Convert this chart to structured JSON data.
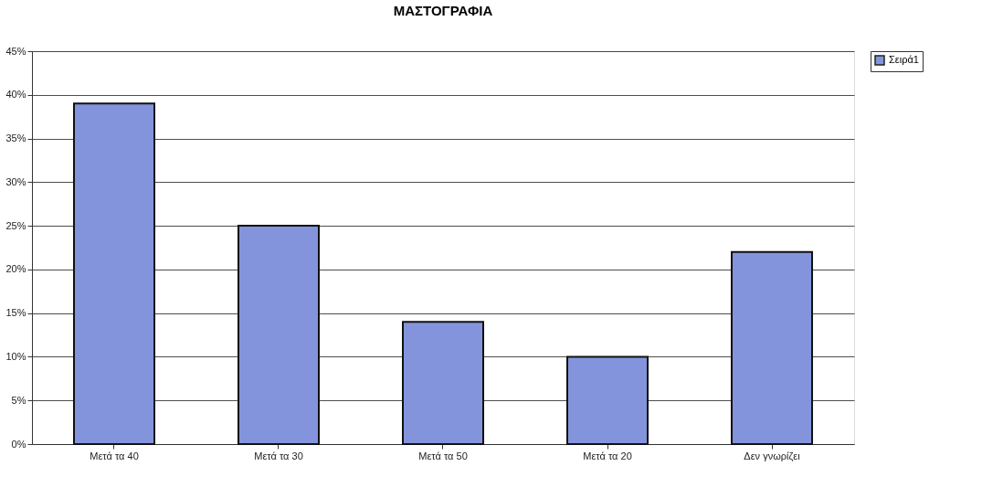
{
  "chart_data": {
    "type": "bar",
    "title": "ΜΑΣΤΟΓΡΑΦΙΑ",
    "categories": [
      "Μετά τα 40",
      "Μετά τα 30",
      "Μετά τα 50",
      "Μετά τα 20",
      "Δεν γνωρίζει"
    ],
    "series": [
      {
        "name": "Σειρά1",
        "color": "#8494dc",
        "values": [
          39,
          25,
          14,
          10,
          22
        ]
      }
    ],
    "ylim": [
      0,
      45
    ],
    "yticks": [
      {
        "value": 0,
        "label": "0%"
      },
      {
        "value": 5,
        "label": "5%"
      },
      {
        "value": 10,
        "label": "10%"
      },
      {
        "value": 15,
        "label": "15%"
      },
      {
        "value": 20,
        "label": "20%"
      },
      {
        "value": 25,
        "label": "25%"
      },
      {
        "value": 30,
        "label": "30%"
      },
      {
        "value": 35,
        "label": "35%"
      },
      {
        "value": 40,
        "label": "40%"
      },
      {
        "value": 45,
        "label": "45%"
      }
    ],
    "grid": "y",
    "legend": "right"
  }
}
